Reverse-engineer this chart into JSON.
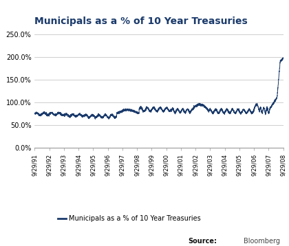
{
  "title": "Municipals as a % of 10 Year Treasuries",
  "title_color": "#1a3a6b",
  "line_color": "#1a3a6b",
  "background_color": "#ffffff",
  "plot_bg_color": "#ffffff",
  "grid_color": "#bbbbbb",
  "ylim_data": [
    0.0,
    2.6
  ],
  "ytick_vals": [
    0.0,
    0.5,
    1.0,
    1.5,
    2.0,
    2.5
  ],
  "ytick_labels": [
    "0.0%",
    "50.0%",
    "100.0%",
    "150.0%",
    "200.0%",
    "250.0%"
  ],
  "legend_label": "Municipals as a % of 10 Year Treasuries",
  "source_label": "Source:",
  "source_text": "Bloomberg",
  "xtick_labels": [
    "9/29/91",
    "9/29/92",
    "9/29/93",
    "9/29/94",
    "9/29/95",
    "9/29/96",
    "9/29/97",
    "9/29/98",
    "9/29/99",
    "9/29/00",
    "9/29/01",
    "9/29/02",
    "9/29/03",
    "9/29/04",
    "9/29/05",
    "9/29/06",
    "9/29/07",
    "9/29/08"
  ],
  "num_points": 4522,
  "seed": 42
}
